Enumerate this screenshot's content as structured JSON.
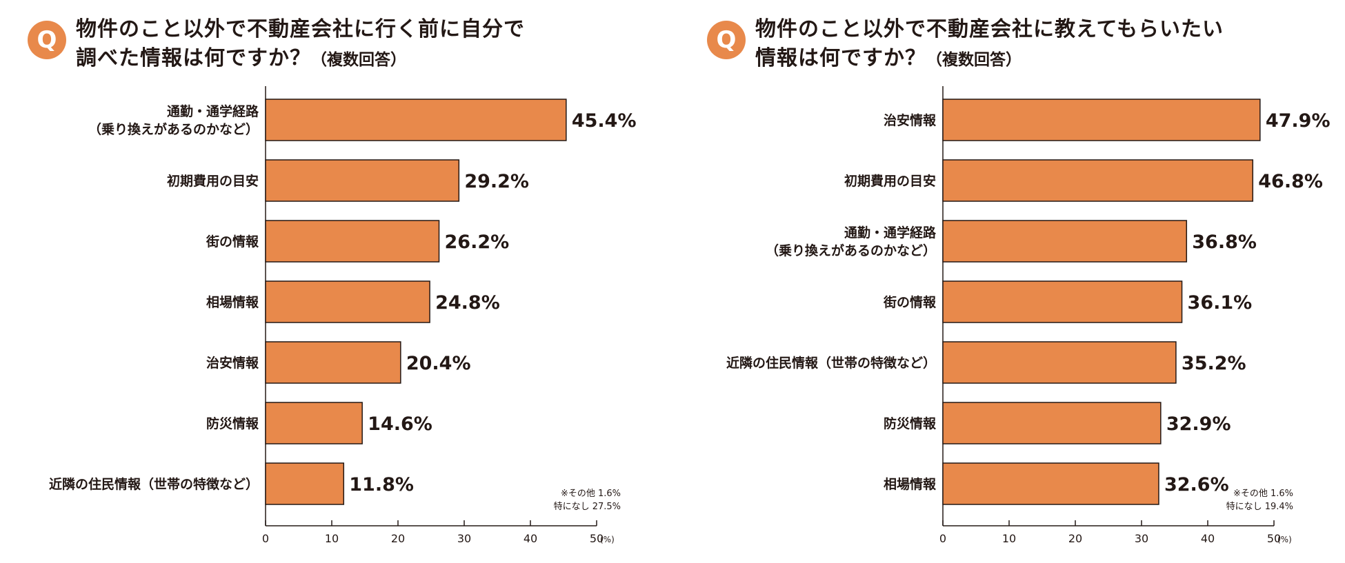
{
  "colors": {
    "bar_fill": "#E8894B",
    "bar_stroke": "#231815",
    "axis": "#231815",
    "badge": "#E8894B"
  },
  "chart_data": [
    {
      "type": "bar",
      "orientation": "horizontal",
      "badge": "Q",
      "title_line1": "物件のこと以外で不動産会社に行く前に自分で",
      "title_line2": "調べた情報は何ですか？",
      "title_suffix": "（複数回答）",
      "categories": [
        [
          "通勤・通学経路",
          "（乗り換えがあるのかなど）"
        ],
        [
          "初期費用の目安"
        ],
        [
          "街の情報"
        ],
        [
          "相場情報"
        ],
        [
          "治安情報"
        ],
        [
          "防災情報"
        ],
        [
          "近隣の住民情報（世帯の特徴など）"
        ]
      ],
      "values": [
        45.4,
        29.2,
        26.2,
        24.8,
        20.4,
        14.6,
        11.8
      ],
      "value_labels": [
        "45.4%",
        "29.2%",
        "26.2%",
        "24.8%",
        "20.4%",
        "14.6%",
        "11.8%"
      ],
      "xlim": [
        0,
        50
      ],
      "xticks": [
        0,
        10,
        20,
        30,
        40,
        50
      ],
      "tick_labels": [
        "0",
        "10",
        "20",
        "30",
        "40",
        "50"
      ],
      "x_unit": "(%)",
      "note_line1": "※その他 1.6%",
      "note_line2": "特になし 27.5%"
    },
    {
      "type": "bar",
      "orientation": "horizontal",
      "badge": "Q",
      "title_line1": "物件のこと以外で不動産会社に教えてもらいたい",
      "title_line2": "情報は何ですか？",
      "title_suffix": "（複数回答）",
      "categories": [
        [
          "治安情報"
        ],
        [
          "初期費用の目安"
        ],
        [
          "通勤・通学経路",
          "（乗り換えがあるのかなど）"
        ],
        [
          "街の情報"
        ],
        [
          "近隣の住民情報（世帯の特徴など）"
        ],
        [
          "防災情報"
        ],
        [
          "相場情報"
        ]
      ],
      "values": [
        47.9,
        46.8,
        36.8,
        36.1,
        35.2,
        32.9,
        32.6
      ],
      "value_labels": [
        "47.9%",
        "46.8%",
        "36.8%",
        "36.1%",
        "35.2%",
        "32.9%",
        "32.6%"
      ],
      "xlim": [
        0,
        50
      ],
      "xticks": [
        0,
        10,
        20,
        30,
        40,
        50
      ],
      "tick_labels": [
        "0",
        "10",
        "20",
        "30",
        "40",
        "50"
      ],
      "x_unit": "(%)",
      "note_line1": "※その他 1.6%",
      "note_line2": "特になし 19.4%"
    }
  ]
}
